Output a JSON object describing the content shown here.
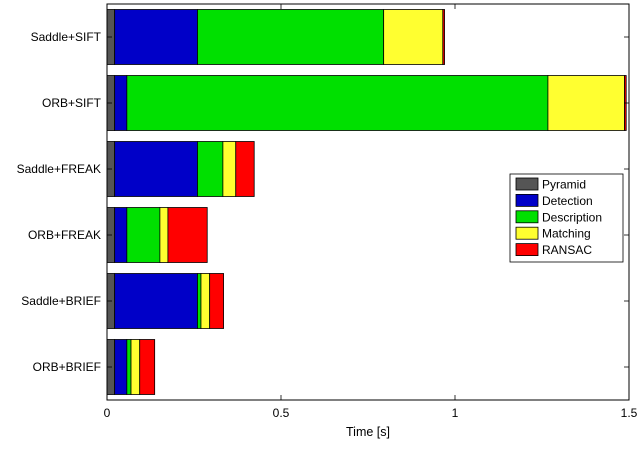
{
  "chart_data": {
    "type": "bar",
    "orientation": "horizontal",
    "stacked": true,
    "title": "",
    "xlabel": "Time [s]",
    "ylabel": "",
    "xlim": [
      0,
      1.5
    ],
    "xticks": [
      0,
      0.5,
      1,
      1.5
    ],
    "xtick_labels": [
      "0",
      "0.5",
      "1",
      "1.5"
    ],
    "categories": [
      "Saddle+SIFT",
      "ORB+SIFT",
      "Saddle+FREAK",
      "ORB+FREAK",
      "Saddle+BRIEF",
      "ORB+BRIEF"
    ],
    "series": [
      {
        "name": "Pyramid",
        "color": "#555555",
        "values": [
          0.022,
          0.022,
          0.022,
          0.022,
          0.022,
          0.022
        ]
      },
      {
        "name": "Detection",
        "color": "#0000c8",
        "values": [
          0.238,
          0.035,
          0.238,
          0.035,
          0.238,
          0.035
        ]
      },
      {
        "name": "Description",
        "color": "#00e000",
        "values": [
          0.535,
          1.21,
          0.073,
          0.095,
          0.01,
          0.012
        ]
      },
      {
        "name": "Matching",
        "color": "#ffff30",
        "values": [
          0.17,
          0.22,
          0.037,
          0.023,
          0.025,
          0.025
        ]
      },
      {
        "name": "RANSAC",
        "color": "#ff0000",
        "values": [
          0.005,
          0.005,
          0.053,
          0.113,
          0.04,
          0.043
        ]
      }
    ],
    "grid": false,
    "legend_position": "right"
  }
}
